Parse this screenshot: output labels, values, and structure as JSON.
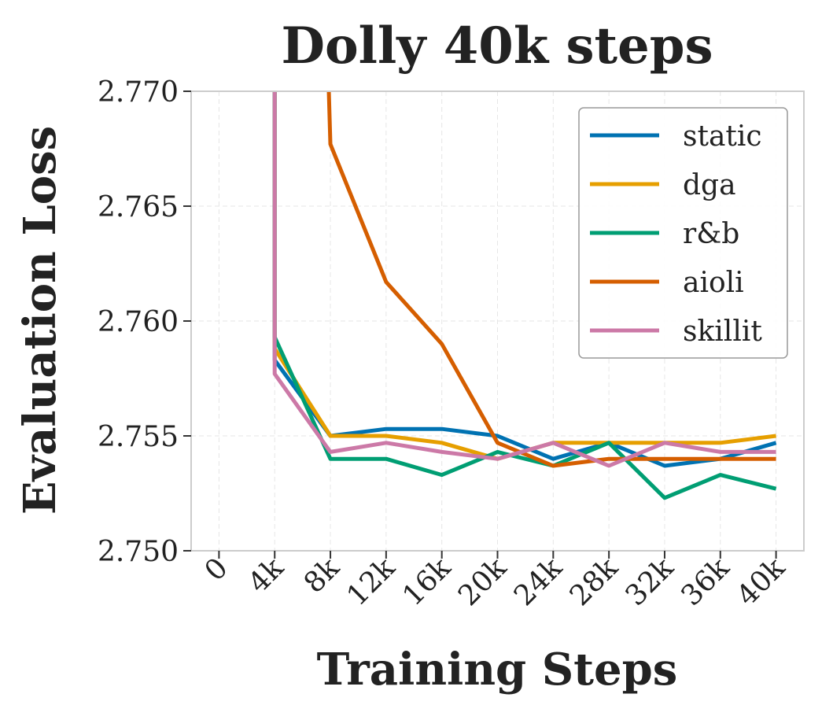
{
  "chart_data": {
    "type": "line",
    "title": "Dolly 40k steps",
    "xlabel": "Training Steps",
    "ylabel": "Evaluation Loss",
    "x": [
      0,
      4000,
      8000,
      12000,
      16000,
      20000,
      24000,
      28000,
      32000,
      36000,
      40000
    ],
    "xtick_labels": [
      "0",
      "4k",
      "8k",
      "12k",
      "16k",
      "20k",
      "24k",
      "28k",
      "32k",
      "36k",
      "40k"
    ],
    "yticks": [
      2.75,
      2.755,
      2.76,
      2.765,
      2.77
    ],
    "ytick_labels": [
      "2.750",
      "2.755",
      "2.760",
      "2.765",
      "2.770"
    ],
    "xlim": [
      -2000,
      42000
    ],
    "ylim": [
      2.75,
      2.77
    ],
    "grid": true,
    "legend_position": "top-right",
    "series": [
      {
        "name": "static",
        "color": "#0072B2",
        "points": [
          [
            4000,
            2.778
          ],
          [
            4000,
            2.7583
          ],
          [
            8000,
            2.755
          ],
          [
            12000,
            2.7553
          ],
          [
            16000,
            2.7553
          ],
          [
            20000,
            2.755
          ],
          [
            24000,
            2.754
          ],
          [
            28000,
            2.7547
          ],
          [
            32000,
            2.7537
          ],
          [
            36000,
            2.754
          ],
          [
            40000,
            2.7547
          ]
        ]
      },
      {
        "name": "dga",
        "color": "#E69F00",
        "points": [
          [
            4000,
            2.778
          ],
          [
            4000,
            2.7588
          ],
          [
            8000,
            2.755
          ],
          [
            12000,
            2.755
          ],
          [
            16000,
            2.7547
          ],
          [
            20000,
            2.754
          ],
          [
            24000,
            2.7547
          ],
          [
            28000,
            2.7547
          ],
          [
            32000,
            2.7547
          ],
          [
            36000,
            2.7547
          ],
          [
            40000,
            2.755
          ]
        ]
      },
      {
        "name": "r&b",
        "color": "#009E73",
        "points": [
          [
            4000,
            2.778
          ],
          [
            4000,
            2.7593
          ],
          [
            8000,
            2.754
          ],
          [
            12000,
            2.754
          ],
          [
            16000,
            2.7533
          ],
          [
            20000,
            2.7543
          ],
          [
            24000,
            2.7537
          ],
          [
            28000,
            2.7547
          ],
          [
            32000,
            2.7523
          ],
          [
            36000,
            2.7533
          ],
          [
            40000,
            2.7527
          ]
        ]
      },
      {
        "name": "aioli",
        "color": "#D55E00",
        "points": [
          [
            7500,
            2.778
          ],
          [
            8000,
            2.7677
          ],
          [
            12000,
            2.7617
          ],
          [
            16000,
            2.759
          ],
          [
            20000,
            2.7547
          ],
          [
            24000,
            2.7537
          ],
          [
            28000,
            2.754
          ],
          [
            32000,
            2.754
          ],
          [
            36000,
            2.754
          ],
          [
            40000,
            2.754
          ]
        ]
      },
      {
        "name": "skillit",
        "color": "#CC79A7",
        "points": [
          [
            4000,
            2.778
          ],
          [
            4000,
            2.7577
          ],
          [
            8000,
            2.7543
          ],
          [
            12000,
            2.7547
          ],
          [
            16000,
            2.7543
          ],
          [
            20000,
            2.754
          ],
          [
            24000,
            2.7547
          ],
          [
            28000,
            2.7537
          ],
          [
            32000,
            2.7547
          ],
          [
            36000,
            2.7543
          ],
          [
            40000,
            2.7543
          ]
        ]
      }
    ]
  }
}
